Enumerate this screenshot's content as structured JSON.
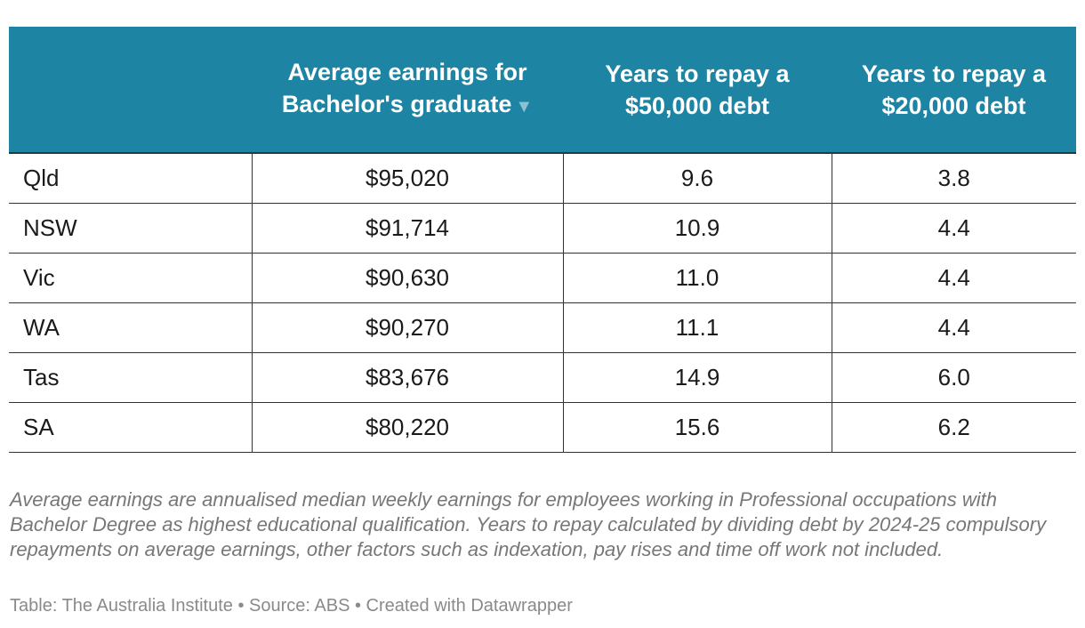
{
  "chart_data": {
    "type": "table",
    "columns": [
      {
        "label": "",
        "sort_indicator": ""
      },
      {
        "label": "Average earnings for Bachelor's graduate",
        "sort_indicator": "▼"
      },
      {
        "label": "Years to repay a $50,000 debt",
        "sort_indicator": ""
      },
      {
        "label": "Years to repay a $20,000 debt",
        "sort_indicator": ""
      }
    ],
    "rows": [
      {
        "state": "Qld",
        "earnings": "$95,020",
        "years_50k": "9.6",
        "years_20k": "3.8"
      },
      {
        "state": "NSW",
        "earnings": "$91,714",
        "years_50k": "10.9",
        "years_20k": "4.4"
      },
      {
        "state": "Vic",
        "earnings": "$90,630",
        "years_50k": "11.0",
        "years_20k": "4.4"
      },
      {
        "state": "WA",
        "earnings": "$90,270",
        "years_50k": "11.1",
        "years_20k": "4.4"
      },
      {
        "state": "Tas",
        "earnings": "$83,676",
        "years_50k": "14.9",
        "years_20k": "6.0"
      },
      {
        "state": "SA",
        "earnings": "$80,220",
        "years_50k": "15.6",
        "years_20k": "6.2"
      }
    ],
    "notes": "Average earnings are annualised median weekly earnings for employees working in Professional occupations with Bachelor Degree as highest educational qualification. Years to repay calculated by dividing debt by 2024-25 compulsory repayments on average earnings, other factors such as indexation, pay rises and time off work not included.",
    "credits": "Table: The Australia Institute • Source: ABS • Created with Datawrapper",
    "colors": {
      "header_background": "#1d84a3",
      "header_text": "#ffffff",
      "sort_indicator": "#8ec2d3"
    }
  }
}
